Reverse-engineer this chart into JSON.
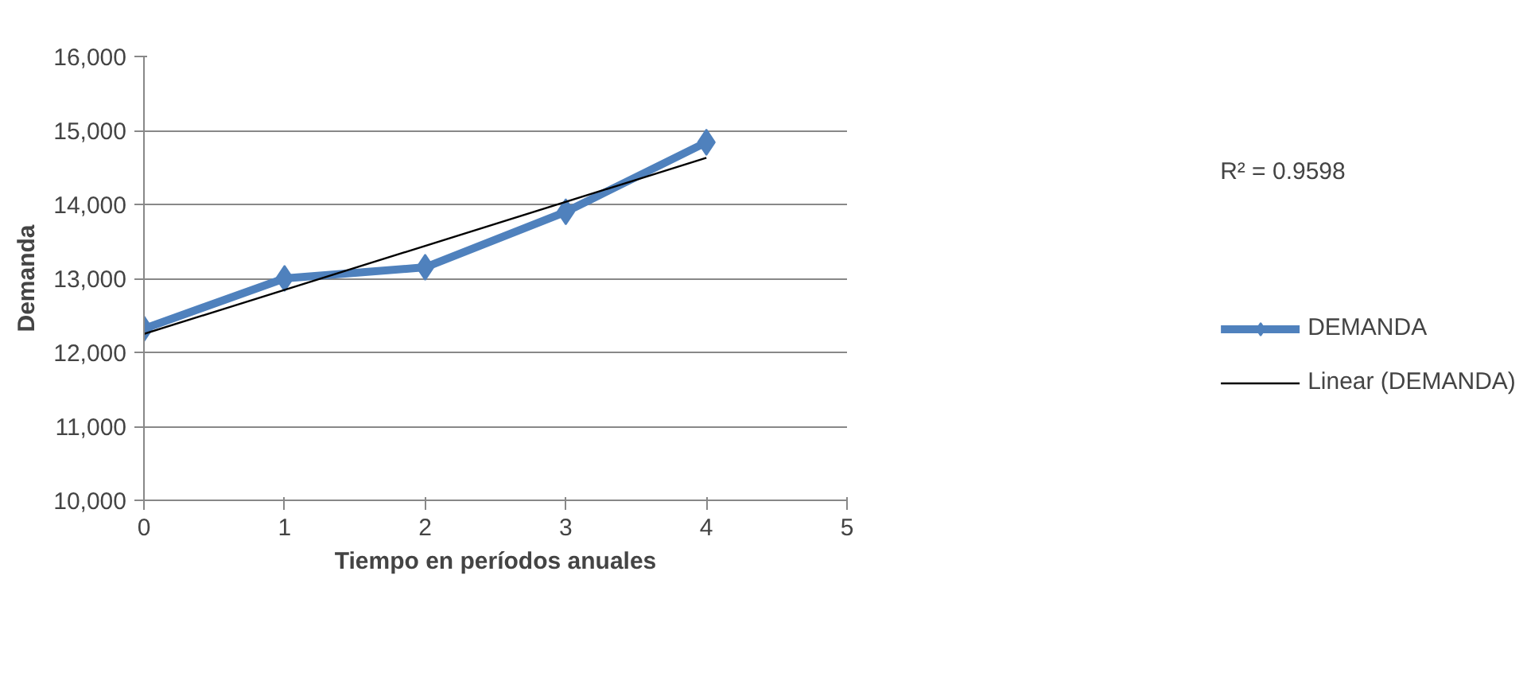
{
  "chart_data": {
    "type": "line",
    "xlabel": "Tiempo en períodos anuales",
    "ylabel": "Demanda",
    "x": [
      0,
      1,
      2,
      3,
      4
    ],
    "series": [
      {
        "name": "DEMANDA",
        "color": "#4f81bd",
        "values": [
          12320,
          13000,
          13150,
          13900,
          14840
        ],
        "marker": "diamond"
      },
      {
        "name": "Linear (DEMANDA)",
        "color": "#000000",
        "type": "line",
        "x": [
          0,
          4
        ],
        "values": [
          12250,
          14630
        ],
        "marker": "none"
      }
    ],
    "xlim": [
      0,
      5
    ],
    "xticks": [
      0,
      1,
      2,
      3,
      4,
      5
    ],
    "ylim": [
      10000,
      16000
    ],
    "yticks": [
      {
        "value": 10000,
        "label": "10,000"
      },
      {
        "value": 11000,
        "label": "11,000"
      },
      {
        "value": 12000,
        "label": "12,000"
      },
      {
        "value": 13000,
        "label": "13,000"
      },
      {
        "value": 14000,
        "label": "14,000"
      },
      {
        "value": 15000,
        "label": "15,000"
      },
      {
        "value": 16000,
        "label": "16,000"
      }
    ],
    "grid": "y",
    "legend": "right",
    "annotations": [
      "R² = 0.9598"
    ]
  }
}
